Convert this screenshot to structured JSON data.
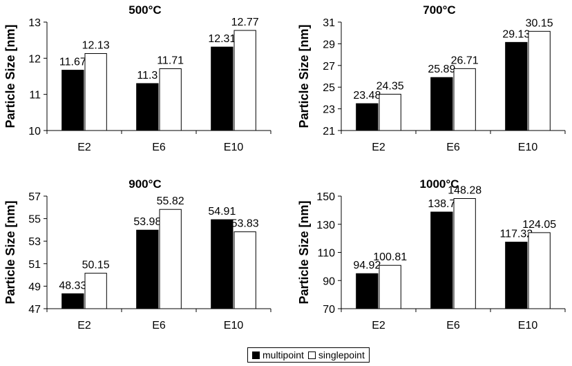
{
  "colors": {
    "multipoint": "#000000",
    "singlepoint": "#ffffff",
    "outline": "#000000"
  },
  "legend": {
    "items": [
      "multipoint",
      "singlepoint"
    ]
  },
  "chart_data": [
    {
      "type": "bar",
      "title": "500°C",
      "ylabel": "Particle Size [nm]",
      "xlabel": "",
      "categories": [
        "E2",
        "E6",
        "E10"
      ],
      "ylim": [
        10,
        13
      ],
      "yticks": [
        10,
        11,
        12,
        13
      ],
      "series": [
        {
          "name": "multipoint",
          "values": [
            11.67,
            11.3,
            12.31
          ],
          "labels": [
            "11.67",
            "11.3",
            "12.31"
          ]
        },
        {
          "name": "singlepoint",
          "values": [
            12.13,
            11.71,
            12.77
          ],
          "labels": [
            "12.13",
            "11.71",
            "12.77"
          ]
        }
      ]
    },
    {
      "type": "bar",
      "title": "700°C",
      "ylabel": "Particle Size [nm]",
      "xlabel": "",
      "categories": [
        "E2",
        "E6",
        "E10"
      ],
      "ylim": [
        21,
        31
      ],
      "yticks": [
        21,
        23,
        25,
        27,
        29,
        31
      ],
      "series": [
        {
          "name": "multipoint",
          "values": [
            23.48,
            25.89,
            29.13
          ],
          "labels": [
            "23.48",
            "25.89",
            "29.13"
          ]
        },
        {
          "name": "singlepoint",
          "values": [
            24.35,
            26.71,
            30.15
          ],
          "labels": [
            "24.35",
            "26.71",
            "30.15"
          ]
        }
      ]
    },
    {
      "type": "bar",
      "title": "900°C",
      "ylabel": "Particle Size [nm]",
      "xlabel": "",
      "categories": [
        "E2",
        "E6",
        "E10"
      ],
      "ylim": [
        47,
        57
      ],
      "yticks": [
        47,
        49,
        51,
        53,
        55,
        57
      ],
      "series": [
        {
          "name": "multipoint",
          "values": [
            48.33,
            53.98,
            54.91
          ],
          "labels": [
            "48.33",
            "53.98",
            "54.91"
          ]
        },
        {
          "name": "singlepoint",
          "values": [
            50.15,
            55.82,
            53.83
          ],
          "labels": [
            "50.15",
            "55.82",
            "53.83"
          ]
        }
      ]
    },
    {
      "type": "bar",
      "title": "1000°C",
      "ylabel": "Particle Size [nm]",
      "xlabel": "",
      "categories": [
        "E2",
        "E6",
        "E10"
      ],
      "ylim": [
        70,
        150
      ],
      "yticks": [
        70,
        90,
        110,
        130,
        150
      ],
      "series": [
        {
          "name": "multipoint",
          "values": [
            94.92,
            138.7,
            117.32
          ],
          "labels": [
            "94.92",
            "138.7",
            "117.32"
          ]
        },
        {
          "name": "singlepoint",
          "values": [
            100.81,
            148.28,
            124.05
          ],
          "labels": [
            "100.81",
            "148.28",
            "124.05"
          ]
        }
      ]
    }
  ]
}
